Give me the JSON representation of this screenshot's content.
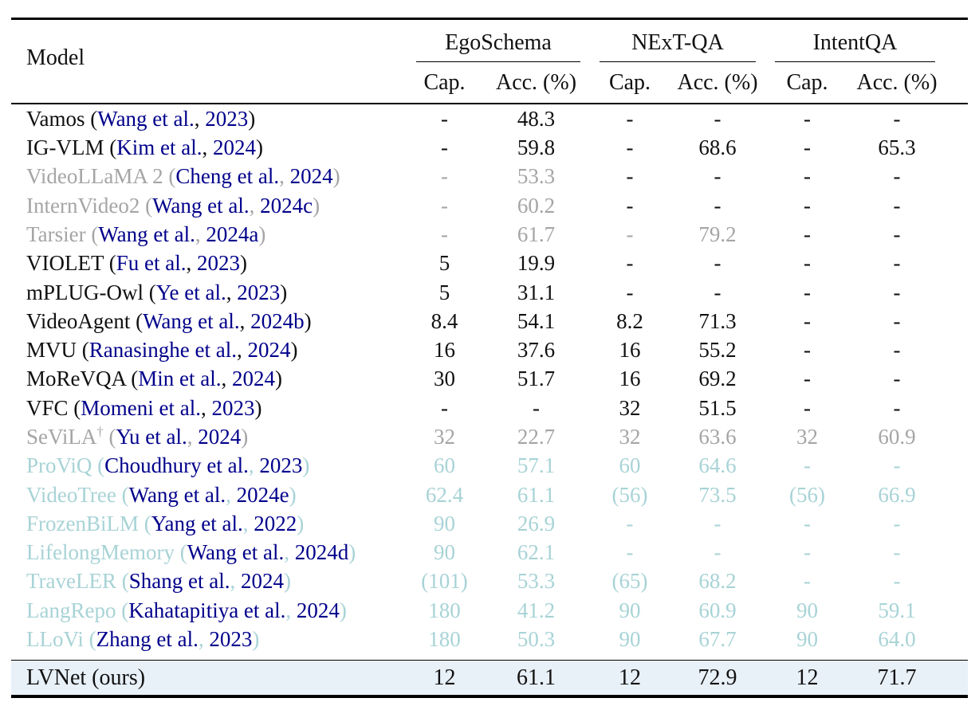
{
  "table": {
    "header": {
      "model_label": "Model",
      "groups": [
        {
          "label": "EgoSchema"
        },
        {
          "label": "NExT-QA"
        },
        {
          "label": "IntentQA"
        }
      ],
      "subcols": [
        "Cap.",
        "Acc. (%)"
      ]
    },
    "colors": {
      "black": "#111111",
      "gray": "#A5A5A5",
      "teal": "#A8D3D6",
      "citation": "#00008B",
      "highlight_bg": "#E8F0F8"
    },
    "rows": [
      {
        "name": "Vamos",
        "author": "Wang et al.",
        "year": "2023",
        "color": "k",
        "cells": [
          [
            "-",
            "k"
          ],
          [
            "48.3",
            "k"
          ],
          [
            "-",
            "k"
          ],
          [
            "-",
            "k"
          ],
          [
            "-",
            "k"
          ],
          [
            "-",
            "k"
          ]
        ]
      },
      {
        "name": "IG-VLM",
        "author": "Kim et al.",
        "year": "2024",
        "color": "k",
        "cells": [
          [
            "-",
            "k"
          ],
          [
            "59.8",
            "k"
          ],
          [
            "-",
            "k"
          ],
          [
            "68.6",
            "k"
          ],
          [
            "-",
            "k"
          ],
          [
            "65.3",
            "k"
          ]
        ]
      },
      {
        "name": "VideoLLaMA 2",
        "author": "Cheng et al.",
        "year": "2024",
        "color": "g",
        "cells": [
          [
            "-",
            "g"
          ],
          [
            "53.3",
            "g"
          ],
          [
            "-",
            "k"
          ],
          [
            "-",
            "k"
          ],
          [
            "-",
            "k"
          ],
          [
            "-",
            "k"
          ]
        ]
      },
      {
        "name": "InternVideo2",
        "author": "Wang et al.",
        "year": "2024c",
        "color": "g",
        "cells": [
          [
            "-",
            "g"
          ],
          [
            "60.2",
            "g"
          ],
          [
            "-",
            "k"
          ],
          [
            "-",
            "k"
          ],
          [
            "-",
            "k"
          ],
          [
            "-",
            "k"
          ]
        ]
      },
      {
        "name": "Tarsier",
        "author": "Wang et al.",
        "year": "2024a",
        "color": "g",
        "cells": [
          [
            "-",
            "g"
          ],
          [
            "61.7",
            "g"
          ],
          [
            "-",
            "g"
          ],
          [
            "79.2",
            "g"
          ],
          [
            "-",
            "k"
          ],
          [
            "-",
            "k"
          ]
        ]
      },
      {
        "name": "VIOLET",
        "author": "Fu et al.",
        "year": "2023",
        "color": "k",
        "cells": [
          [
            "5",
            "k"
          ],
          [
            "19.9",
            "k"
          ],
          [
            "-",
            "k"
          ],
          [
            "-",
            "k"
          ],
          [
            "-",
            "k"
          ],
          [
            "-",
            "k"
          ]
        ]
      },
      {
        "name": "mPLUG-Owl",
        "author": "Ye et al.",
        "year": "2023",
        "color": "k",
        "cells": [
          [
            "5",
            "k"
          ],
          [
            "31.1",
            "k"
          ],
          [
            "-",
            "k"
          ],
          [
            "-",
            "k"
          ],
          [
            "-",
            "k"
          ],
          [
            "-",
            "k"
          ]
        ]
      },
      {
        "name": "VideoAgent",
        "author": "Wang et al.",
        "year": "2024b",
        "color": "k",
        "cells": [
          [
            "8.4",
            "k"
          ],
          [
            "54.1",
            "k"
          ],
          [
            "8.2",
            "k"
          ],
          [
            "71.3",
            "k"
          ],
          [
            "-",
            "k"
          ],
          [
            "-",
            "k"
          ]
        ]
      },
      {
        "name": "MVU",
        "author": "Ranasinghe et al.",
        "year": "2024",
        "color": "k",
        "cells": [
          [
            "16",
            "k"
          ],
          [
            "37.6",
            "k"
          ],
          [
            "16",
            "k"
          ],
          [
            "55.2",
            "k"
          ],
          [
            "-",
            "k"
          ],
          [
            "-",
            "k"
          ]
        ]
      },
      {
        "name": "MoReVQA",
        "author": "Min et al.",
        "year": "2024",
        "color": "k",
        "cells": [
          [
            "30",
            "k"
          ],
          [
            "51.7",
            "k"
          ],
          [
            "16",
            "k"
          ],
          [
            "69.2",
            "k"
          ],
          [
            "-",
            "k"
          ],
          [
            "-",
            "k"
          ]
        ]
      },
      {
        "name": "VFC",
        "author": "Momeni et al.",
        "year": "2023",
        "color": "k",
        "cells": [
          [
            "-",
            "k"
          ],
          [
            "-",
            "k"
          ],
          [
            "32",
            "k"
          ],
          [
            "51.5",
            "k"
          ],
          [
            "-",
            "k"
          ],
          [
            "-",
            "k"
          ]
        ]
      },
      {
        "name": "SeViLA",
        "dagger": true,
        "author": "Yu et al.",
        "year": "2024",
        "color": "g",
        "cells": [
          [
            "32",
            "g"
          ],
          [
            "22.7",
            "g"
          ],
          [
            "32",
            "g"
          ],
          [
            "63.6",
            "g"
          ],
          [
            "32",
            "g"
          ],
          [
            "60.9",
            "g"
          ]
        ]
      },
      {
        "name": "ProViQ",
        "author": "Choudhury et al.",
        "year": "2023",
        "color": "t",
        "cells": [
          [
            "60",
            "t"
          ],
          [
            "57.1",
            "t"
          ],
          [
            "60",
            "t"
          ],
          [
            "64.6",
            "t"
          ],
          [
            "-",
            "t"
          ],
          [
            "-",
            "t"
          ]
        ]
      },
      {
        "name": "VideoTree",
        "author": "Wang et al.",
        "year": "2024e",
        "color": "t",
        "cells": [
          [
            "62.4",
            "t"
          ],
          [
            "61.1",
            "t"
          ],
          [
            "(56)",
            "t"
          ],
          [
            "73.5",
            "t"
          ],
          [
            "(56)",
            "t"
          ],
          [
            "66.9",
            "t"
          ]
        ]
      },
      {
        "name": "FrozenBiLM",
        "author": "Yang et al.",
        "year": "2022",
        "color": "t",
        "cells": [
          [
            "90",
            "t"
          ],
          [
            "26.9",
            "t"
          ],
          [
            "-",
            "t"
          ],
          [
            "-",
            "t"
          ],
          [
            "-",
            "t"
          ],
          [
            "-",
            "t"
          ]
        ]
      },
      {
        "name": "LifelongMemory",
        "author": "Wang et al.",
        "year": "2024d",
        "color": "t",
        "cells": [
          [
            "90",
            "t"
          ],
          [
            "62.1",
            "t"
          ],
          [
            "-",
            "t"
          ],
          [
            "-",
            "t"
          ],
          [
            "-",
            "t"
          ],
          [
            "-",
            "t"
          ]
        ]
      },
      {
        "name": "TraveLER",
        "author": "Shang et al.",
        "year": "2024",
        "color": "t",
        "cells": [
          [
            "(101)",
            "t"
          ],
          [
            "53.3",
            "t"
          ],
          [
            "(65)",
            "t"
          ],
          [
            "68.2",
            "t"
          ],
          [
            "-",
            "t"
          ],
          [
            "-",
            "t"
          ]
        ]
      },
      {
        "name": "LangRepo",
        "author": "Kahatapitiya et al.",
        "year": "2024",
        "color": "t",
        "cells": [
          [
            "180",
            "t"
          ],
          [
            "41.2",
            "t"
          ],
          [
            "90",
            "t"
          ],
          [
            "60.9",
            "t"
          ],
          [
            "90",
            "t"
          ],
          [
            "59.1",
            "t"
          ]
        ]
      },
      {
        "name": "LLoVi",
        "author": "Zhang et al.",
        "year": "2023",
        "color": "t",
        "cells": [
          [
            "180",
            "t"
          ],
          [
            "50.3",
            "t"
          ],
          [
            "90",
            "t"
          ],
          [
            "67.7",
            "t"
          ],
          [
            "90",
            "t"
          ],
          [
            "64.0",
            "t"
          ]
        ]
      }
    ],
    "final_row": {
      "name": "LVNet",
      "suffix": "(ours)",
      "cells": [
        "12",
        "61.1",
        "12",
        "72.9",
        "12",
        "71.7"
      ]
    }
  }
}
